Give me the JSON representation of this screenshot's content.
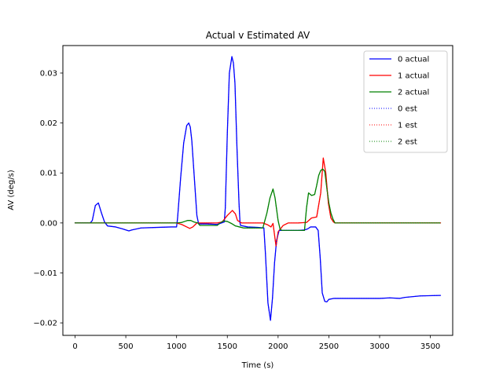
{
  "chart_data": {
    "type": "line",
    "title": "Actual v Estimated AV",
    "xlabel": "Time (s)",
    "ylabel": "AV (deg/s)",
    "xlim": [
      -120,
      3720
    ],
    "ylim": [
      -0.0225,
      0.0355
    ],
    "xticks": [
      0,
      500,
      1000,
      1500,
      2000,
      2500,
      3000,
      3500
    ],
    "xtick_labels": [
      "0",
      "500",
      "1000",
      "1500",
      "2000",
      "2500",
      "3000",
      "3500"
    ],
    "yticks": [
      -0.02,
      -0.01,
      0.0,
      0.01,
      0.02,
      0.03
    ],
    "ytick_labels": [
      "−0.02",
      "−0.01",
      "0.00",
      "0.01",
      "0.02",
      "0.03"
    ],
    "grid": false,
    "legend_position": "top-right",
    "series": [
      {
        "name": "0 actual",
        "color": "#0000ff",
        "style": "solid",
        "x": [
          0,
          150,
          170,
          200,
          230,
          260,
          290,
          320,
          400,
          470,
          530,
          560,
          650,
          800,
          950,
          1000,
          1010,
          1040,
          1070,
          1100,
          1120,
          1135,
          1150,
          1175,
          1200,
          1215,
          1220,
          1300,
          1400,
          1470,
          1480,
          1500,
          1520,
          1545,
          1560,
          1575,
          1595,
          1615,
          1625,
          1630,
          1700,
          1800,
          1860,
          1875,
          1900,
          1925,
          1945,
          1965,
          1985,
          2010,
          2040,
          2100,
          2200,
          2260,
          2290,
          2320,
          2370,
          2395,
          2415,
          2435,
          2460,
          2480,
          2500,
          2550,
          2700,
          2900,
          3000,
          3100,
          3200,
          3250,
          3300,
          3400,
          3600
        ],
        "y": [
          0,
          0,
          0.0005,
          0.0035,
          0.004,
          0.002,
          0.0002,
          -0.0006,
          -0.0008,
          -0.0012,
          -0.0016,
          -0.0014,
          -0.001,
          -0.0009,
          -0.0008,
          -0.0008,
          0.001,
          0.009,
          0.016,
          0.0195,
          0.02,
          0.0192,
          0.0165,
          0.009,
          0.0015,
          0,
          -0.0002,
          -0.0002,
          -0.0003,
          0.0002,
          0.003,
          0.018,
          0.03,
          0.0333,
          0.032,
          0.028,
          0.015,
          0.004,
          0,
          -0.0005,
          -0.0008,
          -0.0009,
          -0.001,
          -0.006,
          -0.016,
          -0.0195,
          -0.015,
          -0.008,
          -0.0035,
          -0.0015,
          -0.0015,
          -0.0015,
          -0.0015,
          -0.0014,
          -0.0012,
          -0.0008,
          -0.0008,
          -0.0015,
          -0.007,
          -0.014,
          -0.0157,
          -0.0158,
          -0.0153,
          -0.0151,
          -0.0151,
          -0.0151,
          -0.0151,
          -0.015,
          -0.0151,
          -0.0149,
          -0.0148,
          -0.0146,
          -0.0145
        ]
      },
      {
        "name": "1 actual",
        "color": "#ff0000",
        "style": "solid",
        "x": [
          0,
          1000,
          1050,
          1100,
          1130,
          1160,
          1200,
          1300,
          1400,
          1450,
          1500,
          1550,
          1580,
          1600,
          1640,
          1700,
          1850,
          1900,
          1930,
          1950,
          1980,
          2000,
          2050,
          2100,
          2200,
          2280,
          2330,
          2380,
          2420,
          2445,
          2470,
          2495,
          2520,
          2545,
          2560,
          3600
        ],
        "y": [
          0,
          0,
          -0.0003,
          -0.0008,
          -0.0011,
          -0.0008,
          0,
          0,
          0,
          0.0002,
          0.0015,
          0.0025,
          0.0018,
          0.0005,
          0,
          0,
          0,
          -0.0004,
          -0.0008,
          -0.0001,
          -0.0047,
          -0.0018,
          -0.0005,
          0,
          0,
          0.0001,
          0.001,
          0.0012,
          0.006,
          0.013,
          0.01,
          0.004,
          0.001,
          0.0002,
          0,
          0
        ]
      },
      {
        "name": "2 actual",
        "color": "#008000",
        "style": "solid",
        "x": [
          0,
          1000,
          1050,
          1080,
          1110,
          1140,
          1170,
          1210,
          1230,
          1300,
          1400,
          1430,
          1460,
          1500,
          1540,
          1580,
          1620,
          1660,
          1700,
          1800,
          1850,
          1890,
          1920,
          1950,
          1970,
          2000,
          2020,
          2040,
          2080,
          2150,
          2260,
          2280,
          2300,
          2330,
          2360,
          2380,
          2400,
          2420,
          2440,
          2460,
          2480,
          2500,
          2520,
          2540,
          2560,
          3600
        ],
        "y": [
          0,
          0,
          0.0001,
          0.0003,
          0.0005,
          0.0005,
          0.0002,
          0,
          -0.0005,
          -0.0005,
          -0.0005,
          0,
          0.0004,
          0.0003,
          -0.0001,
          -0.0006,
          -0.0008,
          -0.001,
          -0.001,
          -0.001,
          -0.001,
          0.002,
          0.005,
          0.0068,
          0.005,
          0.0005,
          -0.0013,
          -0.0015,
          -0.0015,
          -0.0015,
          -0.0015,
          0.003,
          0.006,
          0.0055,
          0.0057,
          0.0075,
          0.0095,
          0.0105,
          0.0108,
          0.0103,
          0.007,
          0.004,
          0.002,
          0.0008,
          0,
          0
        ]
      },
      {
        "name": "0 est",
        "color": "#0000ff",
        "style": "dotted",
        "copy_of": 0
      },
      {
        "name": "1 est",
        "color": "#ff0000",
        "style": "dotted",
        "copy_of": 1
      },
      {
        "name": "2 est",
        "color": "#008000",
        "style": "dotted",
        "copy_of": 2
      }
    ]
  }
}
